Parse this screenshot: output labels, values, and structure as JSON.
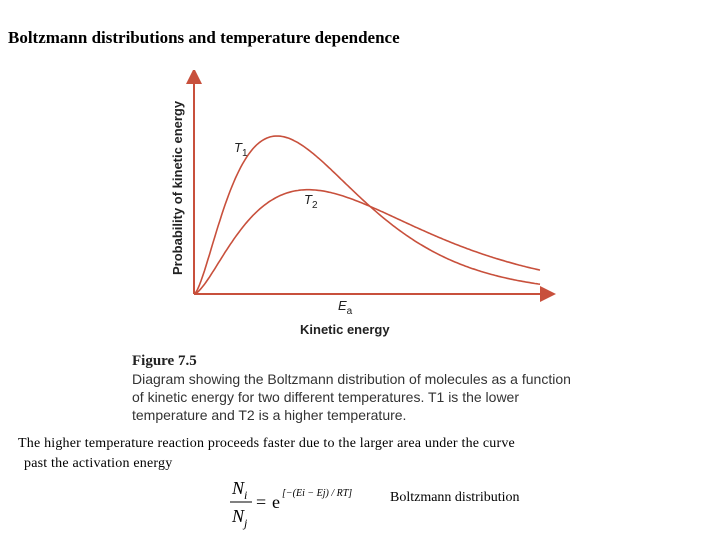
{
  "slide": {
    "title": "Boltzmann distributions and temperature dependence"
  },
  "chart_data": {
    "type": "line",
    "ylabel": "Probability of kinetic energy",
    "xlabel": "Kinetic energy",
    "annotations": [
      "Ea"
    ],
    "series": [
      {
        "name": "T1",
        "color": "#c8503c",
        "peak_x": 0.24,
        "peak_y": 1.0
      },
      {
        "name": "T2",
        "color": "#c8503c",
        "peak_x": 0.33,
        "peak_y": 0.66
      }
    ]
  },
  "figure": {
    "label": "Figure 7.5",
    "caption": "Diagram showing the Boltzmann distribution of molecules as a function of kinetic energy for two different temperatures. T1 is the lower temperature and T2 is a higher temperature."
  },
  "body": {
    "line1": "The higher temperature reaction proceeds faster due to the larger area under the curve",
    "line2": "past the activation energy"
  },
  "equation": {
    "numerator": "N",
    "numerator_sub": "i",
    "denominator": "N",
    "denominator_sub": "j",
    "base": "e",
    "exponent": "[−(Ei − Ej) / RT]",
    "label": "Boltzmann distribution"
  }
}
